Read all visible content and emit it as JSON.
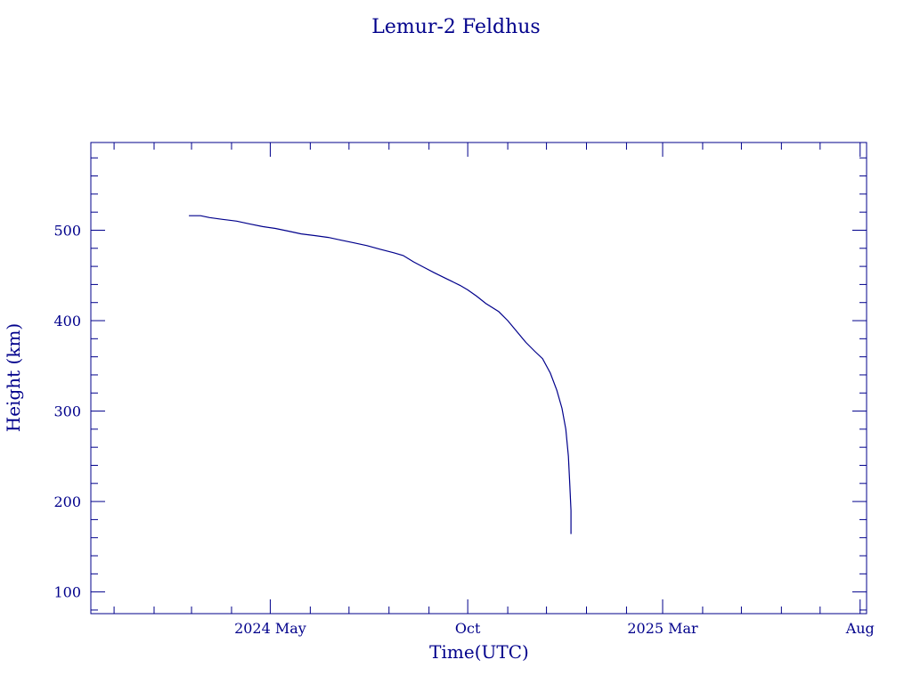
{
  "chart_data": {
    "type": "line",
    "title": "Lemur-2 Feldhus",
    "xlabel": "Time(UTC)",
    "ylabel": "Height (km)",
    "x_ticks": [
      {
        "date": "2024-05-01",
        "label": "2024 May"
      },
      {
        "date": "2024-10-01",
        "label": "Oct"
      },
      {
        "date": "2025-03-01",
        "label": "2025 Mar"
      },
      {
        "date": "2025-08-01",
        "label": "Aug"
      }
    ],
    "y_ticks": [
      100,
      200,
      300,
      400,
      500
    ],
    "xlim": [
      "2023-12-14",
      "2025-08-06"
    ],
    "ylim": [
      76,
      597
    ],
    "grid": false,
    "color": "#00008b",
    "series": [
      {
        "points": [
          [
            "2024-02-28",
            516
          ],
          [
            "2024-03-08",
            516
          ],
          [
            "2024-03-15",
            514
          ],
          [
            "2024-03-25",
            512
          ],
          [
            "2024-04-05",
            510
          ],
          [
            "2024-04-15",
            507
          ],
          [
            "2024-04-25",
            504
          ],
          [
            "2024-05-05",
            502
          ],
          [
            "2024-05-15",
            499
          ],
          [
            "2024-05-25",
            496
          ],
          [
            "2024-06-05",
            494
          ],
          [
            "2024-06-15",
            492
          ],
          [
            "2024-06-25",
            489
          ],
          [
            "2024-07-05",
            486
          ],
          [
            "2024-07-15",
            483
          ],
          [
            "2024-07-25",
            479
          ],
          [
            "2024-08-05",
            475
          ],
          [
            "2024-08-12",
            472
          ],
          [
            "2024-08-20",
            465
          ],
          [
            "2024-08-28",
            459
          ],
          [
            "2024-09-05",
            453
          ],
          [
            "2024-09-15",
            446
          ],
          [
            "2024-09-25",
            439
          ],
          [
            "2024-10-01",
            434
          ],
          [
            "2024-10-08",
            427
          ],
          [
            "2024-10-15",
            419
          ],
          [
            "2024-10-25",
            410
          ],
          [
            "2024-11-01",
            400
          ],
          [
            "2024-11-08",
            388
          ],
          [
            "2024-11-15",
            376
          ],
          [
            "2024-11-22",
            366
          ],
          [
            "2024-11-28",
            358
          ],
          [
            "2024-12-04",
            342
          ],
          [
            "2024-12-09",
            323
          ],
          [
            "2024-12-13",
            303
          ],
          [
            "2024-12-16",
            280
          ],
          [
            "2024-12-18",
            250
          ],
          [
            "2024-12-19",
            220
          ],
          [
            "2024-12-20",
            190
          ],
          [
            "2024-12-20",
            164
          ]
        ]
      }
    ]
  }
}
